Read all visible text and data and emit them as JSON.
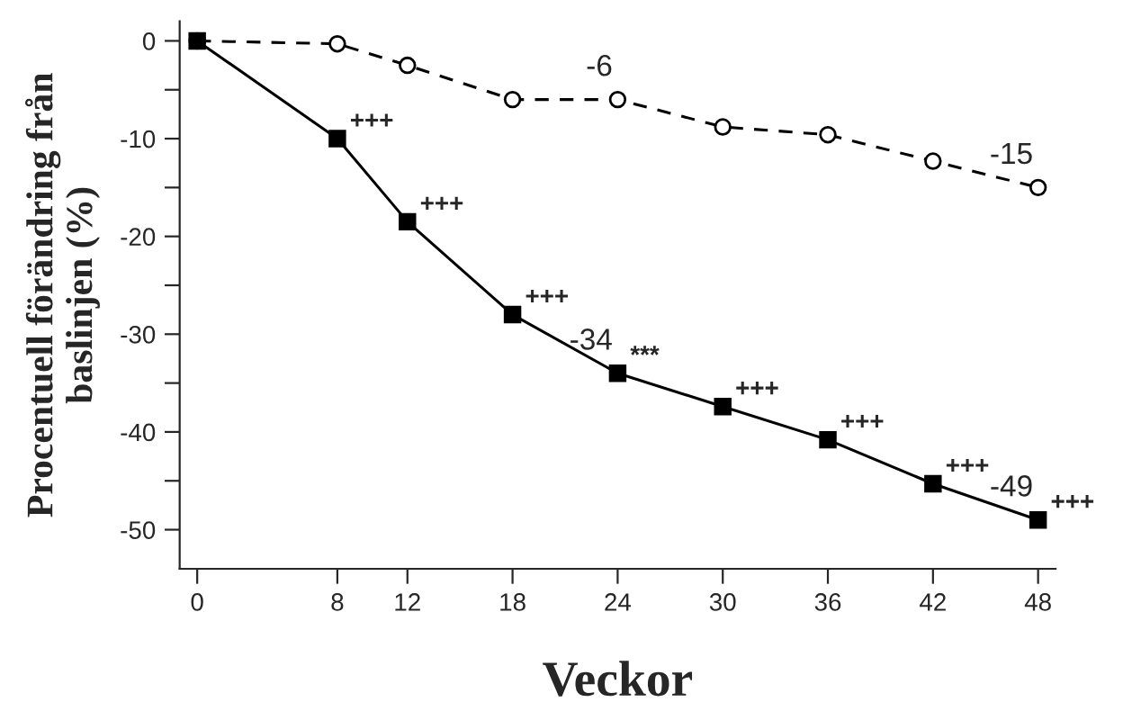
{
  "chart_data": {
    "type": "line",
    "xlabel": "Veckor",
    "ylabel": "Procentuell förändring från\nbaslinjen (%)",
    "x": [
      0,
      8,
      12,
      18,
      24,
      30,
      36,
      42,
      48
    ],
    "series": [
      {
        "color": "#000000",
        "marker": "circle",
        "line_style": "dashed",
        "values": [
          0,
          -0.3,
          -2.5,
          -6,
          -6,
          -8.8,
          -9.6,
          -12.3,
          -15
        ],
        "value_labels": [
          null,
          null,
          null,
          null,
          "-6",
          null,
          null,
          null,
          "-15"
        ]
      },
      {
        "color": "#000000",
        "marker": "square",
        "line_style": "solid",
        "values": [
          0,
          -10,
          -18.5,
          -28,
          -34,
          -37.4,
          -40.8,
          -45.3,
          -49
        ],
        "value_labels": [
          null,
          null,
          null,
          null,
          "-34",
          null,
          null,
          null,
          "-49"
        ]
      }
    ],
    "annotations": [
      {
        "text": "+++",
        "x": 8,
        "y": -10
      },
      {
        "text": "+++",
        "x": 12,
        "y": -18.5
      },
      {
        "text": "+++",
        "x": 18,
        "y": -28
      },
      {
        "text": "***",
        "x": 24,
        "y": -34
      },
      {
        "text": "+++",
        "x": 30,
        "y": -37.4
      },
      {
        "text": "+++",
        "x": 36,
        "y": -40.8
      },
      {
        "text": "+++",
        "x": 42,
        "y": -45.3
      },
      {
        "text": "+++",
        "x": 48,
        "y": -49
      }
    ],
    "xlim": [
      -1,
      49
    ],
    "xticks": [
      0,
      8,
      12,
      18,
      24,
      30,
      36,
      42,
      48
    ],
    "ylim": [
      -54,
      2
    ],
    "yticks": [
      0,
      {
        "value": -5,
        "label": null
      },
      -10,
      {
        "value": -15,
        "label": null
      },
      -20,
      {
        "value": -25,
        "label": null
      },
      -30,
      {
        "value": -35,
        "label": null
      },
      -40,
      {
        "value": -45,
        "label": null
      },
      -50
    ]
  }
}
